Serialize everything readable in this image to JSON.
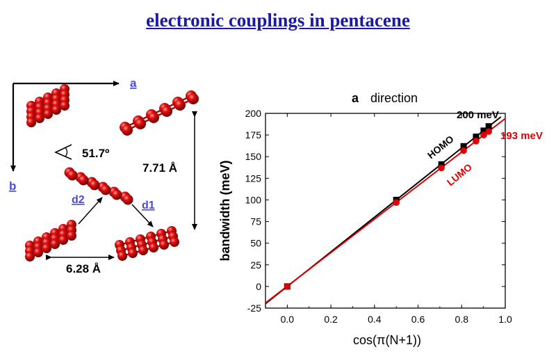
{
  "title": "electronic couplings in pentacene",
  "crystal": {
    "axis_a": "a",
    "axis_b": "b",
    "angle_label": "51.7º",
    "distance_b": "7.71 Å",
    "distance_a": "6.28 Å",
    "d1": "d1",
    "d2": "d2",
    "colors": {
      "atom": "#c40000",
      "bond": "#b50000"
    }
  },
  "chart_data": {
    "type": "scatter",
    "title": "direction",
    "title_prefix": "a",
    "xlabel": "cos(π(N+1))",
    "ylabel": "bandwidth (meV)",
    "xlim": [
      -0.1,
      1.0
    ],
    "ylim": [
      -25,
      200
    ],
    "xticks": [
      "0.0",
      "0.2",
      "0.4",
      "0.6",
      "0.8",
      "1.0"
    ],
    "yticks": [
      "-25",
      "0",
      "25",
      "50",
      "75",
      "100",
      "125",
      "150",
      "175",
      "200"
    ],
    "grid": false,
    "series": [
      {
        "name": "HOMO",
        "color": "#000000",
        "marker": "square",
        "x": [
          0.0,
          0.5,
          0.707,
          0.809,
          0.866,
          0.901,
          0.924
        ],
        "y": [
          0,
          100,
          141,
          162,
          173,
          180,
          185
        ],
        "fit": [
          [
            -0.1,
            -20
          ],
          [
            0.98,
            196
          ]
        ]
      },
      {
        "name": "LUMO",
        "color": "#e00000",
        "marker": "circle",
        "x": [
          0.0,
          0.5,
          0.707,
          0.809,
          0.866,
          0.901,
          0.924
        ],
        "y": [
          0,
          97,
          137,
          157,
          168,
          175,
          179
        ],
        "fit": [
          [
            -0.1,
            -19
          ],
          [
            1.0,
            194
          ]
        ]
      }
    ],
    "annotations": [
      {
        "text": "200 meV",
        "color": "#000000"
      },
      {
        "text": "193 meV",
        "color": "#e00000"
      },
      {
        "text": "HOMO",
        "color": "#000000"
      },
      {
        "text": "LUMO",
        "color": "#e00000"
      }
    ]
  }
}
